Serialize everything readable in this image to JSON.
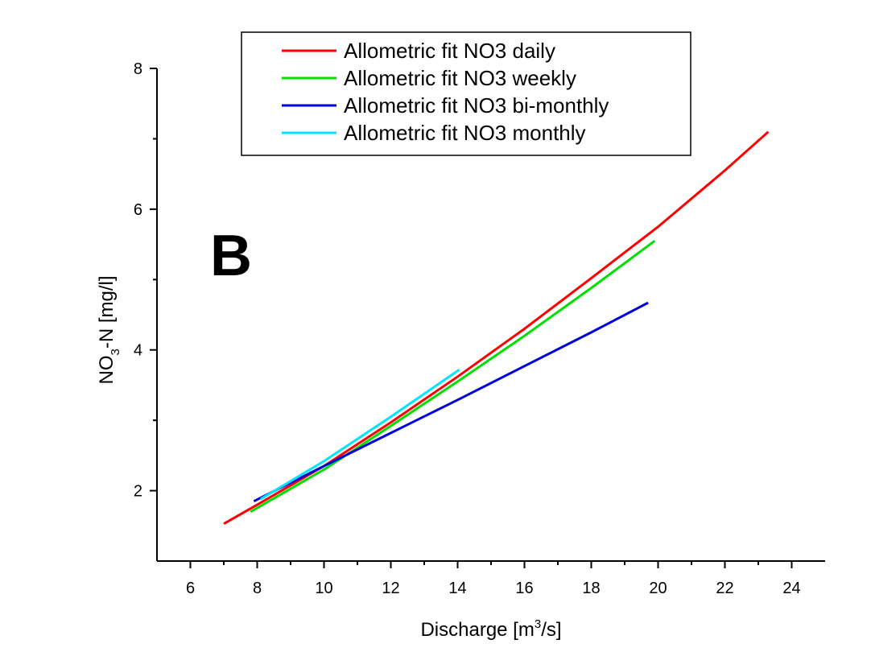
{
  "chart_data": {
    "type": "line",
    "annotation": "B",
    "xlabel": [
      "Discharge [m",
      "3",
      "/s]"
    ],
    "ylabel": [
      "NO",
      "3",
      "-N [mg/l]"
    ],
    "xlim": [
      5,
      25
    ],
    "xticks": [
      6,
      8,
      10,
      12,
      14,
      16,
      18,
      20,
      22,
      24
    ],
    "ylim": [
      1,
      8
    ],
    "yticks": [
      2,
      4,
      6,
      8
    ],
    "legend": "top",
    "series": [
      {
        "name": "Allometric fit NO3 daily",
        "color": "#ff0000",
        "x": [
          7,
          8,
          10,
          12,
          14,
          16,
          18,
          20,
          22,
          23.3
        ],
        "values": [
          1.53,
          1.8,
          2.35,
          2.97,
          3.62,
          4.3,
          5.02,
          5.75,
          6.55,
          7.1
        ]
      },
      {
        "name": "Allometric fit NO3 weekly",
        "color": "#00e000",
        "x": [
          7.8,
          10,
          12,
          14,
          16,
          18,
          19.9
        ],
        "values": [
          1.7,
          2.3,
          2.92,
          3.55,
          4.2,
          4.88,
          5.55
        ]
      },
      {
        "name": "Allometric fit NO3 bi-monthly",
        "color": "#0000dd",
        "x": [
          7.9,
          10,
          12,
          14,
          16,
          18,
          19.7
        ],
        "values": [
          1.85,
          2.35,
          2.82,
          3.29,
          3.77,
          4.25,
          4.67
        ]
      },
      {
        "name": "Allometric fit NO3 monthly",
        "color": "#00e5ff",
        "x": [
          8.1,
          10,
          12,
          14.05
        ],
        "values": [
          1.88,
          2.42,
          3.05,
          3.72
        ]
      }
    ]
  }
}
